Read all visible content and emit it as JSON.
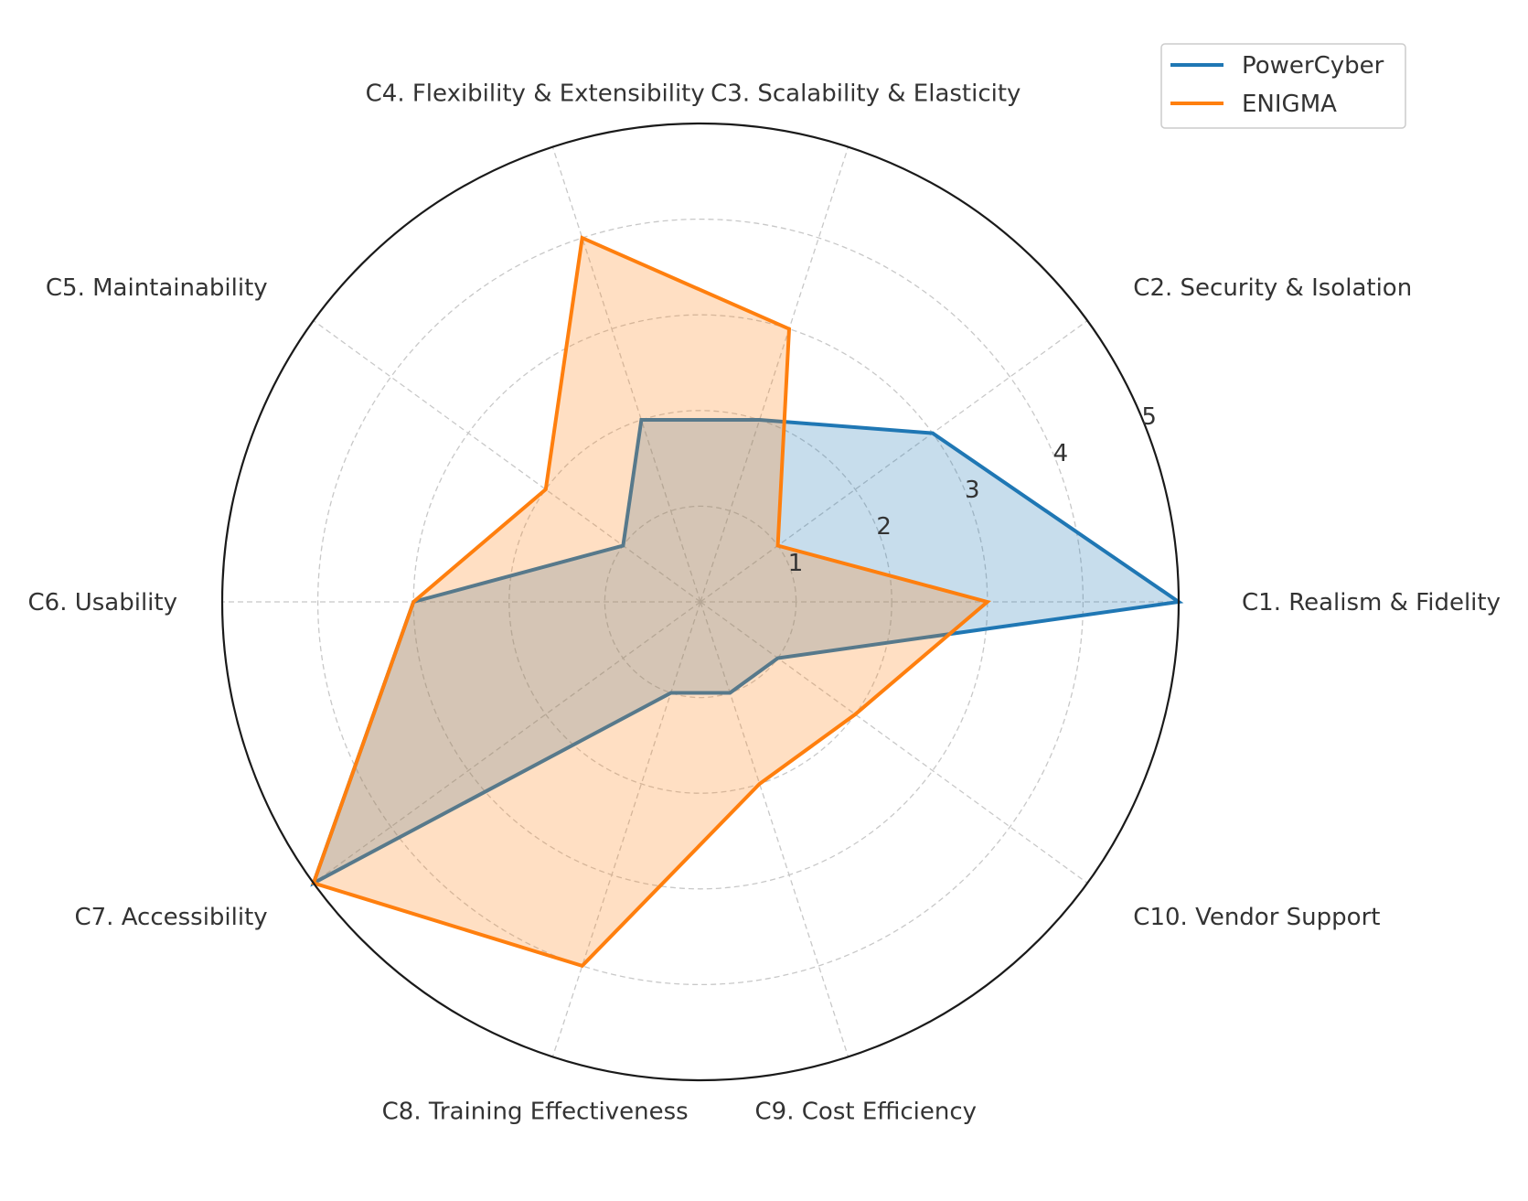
{
  "chart_data": {
    "type": "radar",
    "title": "",
    "categories": [
      "C1. Realism & Fidelity",
      "C2. Security & Isolation",
      "C3. Scalability & Elasticity",
      "C4. Flexibility & Extensibility",
      "C5. Maintainability",
      "C6. Usability",
      "C7. Accessibility",
      "C8. Training Effectiveness",
      "C9. Cost Efficiency",
      "C10. Vendor Support"
    ],
    "series": [
      {
        "name": "PowerCyber",
        "color": "#1f77b4",
        "values": [
          5,
          3,
          2,
          2,
          1,
          3,
          5,
          1,
          1,
          1
        ]
      },
      {
        "name": "ENIGMA",
        "color": "#ff7f0e",
        "values": [
          3,
          1,
          3,
          4,
          2,
          3,
          5,
          4,
          2,
          2
        ]
      }
    ],
    "rlim": [
      0,
      5
    ],
    "rticks": [
      "1",
      "2",
      "3",
      "4",
      "5"
    ],
    "grid": true,
    "legend": "top-right"
  }
}
